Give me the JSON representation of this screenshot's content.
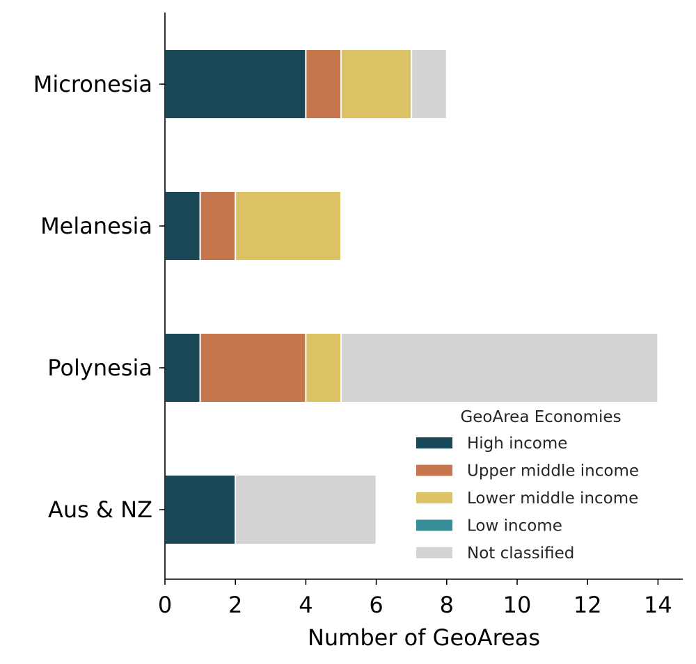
{
  "chart_data": {
    "type": "bar",
    "orientation": "horizontal",
    "stacked": true,
    "categories": [
      "Micronesia",
      "Melanesia",
      "Polynesia",
      "Aus & NZ"
    ],
    "series": [
      {
        "name": "High income",
        "color": "#1b4857",
        "values": [
          4,
          1,
          1,
          2
        ]
      },
      {
        "name": "Upper middle income",
        "color": "#c5764d",
        "values": [
          1,
          1,
          3,
          0
        ]
      },
      {
        "name": "Lower middle income",
        "color": "#dbc265",
        "values": [
          2,
          3,
          1,
          0
        ]
      },
      {
        "name": "Low income",
        "color": "#368f96",
        "values": [
          0,
          0,
          0,
          0
        ]
      },
      {
        "name": "Not classified",
        "color": "#d3d3d3",
        "values": [
          1,
          0,
          9,
          4
        ]
      }
    ],
    "xlabel": "Number of GeoAreas",
    "ylabel": "",
    "xlim": [
      0,
      14.7
    ],
    "xticks": [
      "0",
      "2",
      "4",
      "6",
      "8",
      "10",
      "12",
      "14"
    ],
    "grid": false,
    "legend": {
      "title": "GeoArea Economies",
      "position": "lower-right"
    }
  }
}
